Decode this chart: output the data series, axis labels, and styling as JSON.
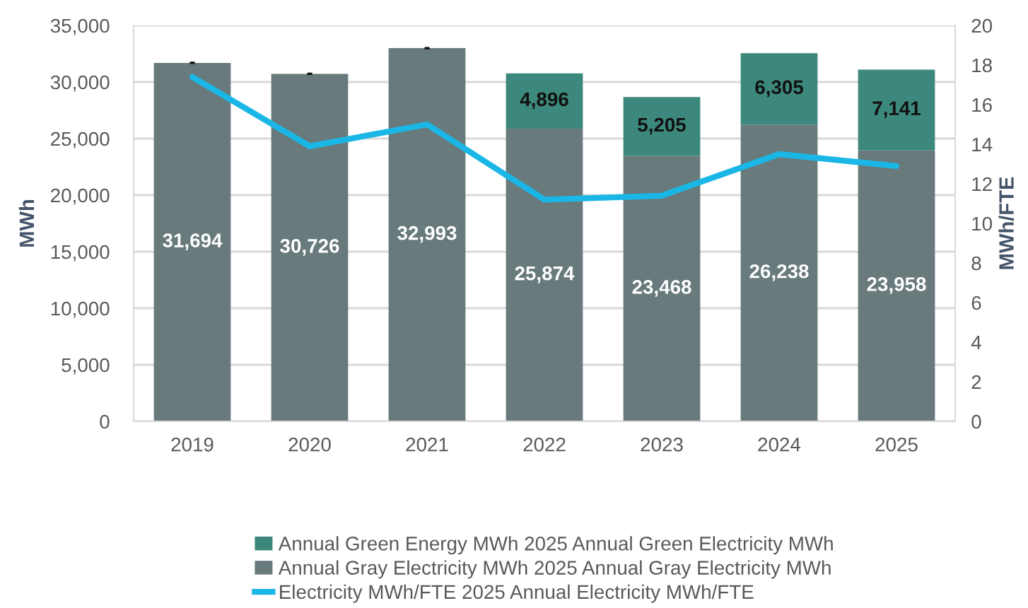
{
  "chart_data": {
    "type": "bar",
    "stacked": true,
    "categories": [
      "2019",
      "2020",
      "2021",
      "2022",
      "2023",
      "2024",
      "2025"
    ],
    "series": [
      {
        "name": "Annual Gray Electricity MWh 2025 Annual Gray Electricity MWh",
        "color": "#687a7c",
        "values": [
          31694,
          30726,
          32993,
          25874,
          23468,
          26238,
          23958
        ],
        "value_labels": [
          "31,694",
          "30,726",
          "32,993",
          "25,874",
          "23,468",
          "26,238",
          "23,958"
        ]
      },
      {
        "name": "Annual Green Energy MWh 2025 Annual Green Electricity MWh",
        "color": "#3d887c",
        "values": [
          0,
          0,
          0,
          4896,
          5205,
          6305,
          7141
        ],
        "value_labels": [
          "-",
          "-",
          "-",
          "4,896",
          "5,205",
          "6,305",
          "7,141"
        ]
      },
      {
        "name": "Electricity MWh/FTE 2025 Annual Electricity MWh/FTE",
        "type": "line",
        "axis": "y2",
        "color": "#1ab7e6",
        "values": [
          17.4,
          13.9,
          15.0,
          11.2,
          11.4,
          13.5,
          12.9
        ]
      }
    ],
    "ylabel": "MWh",
    "y2label": "MWh/FTE",
    "ylim": [
      0,
      35000
    ],
    "yticks": [
      0,
      {
        "value": 5000,
        "label": "5,000"
      },
      {
        "value": 10000,
        "label": "10,000"
      },
      {
        "value": 15000,
        "label": "15,000"
      },
      {
        "value": 20000,
        "label": "20,000"
      },
      {
        "value": 25000,
        "label": "25,000"
      },
      {
        "value": 30000,
        "label": "30,000"
      },
      {
        "value": 35000,
        "label": "35,000"
      }
    ],
    "y2lim": [
      0,
      20
    ],
    "y2ticks": [
      0,
      2,
      4,
      6,
      8,
      10,
      12,
      14,
      16,
      18,
      20
    ],
    "grid": "y",
    "legend": "bottom"
  }
}
